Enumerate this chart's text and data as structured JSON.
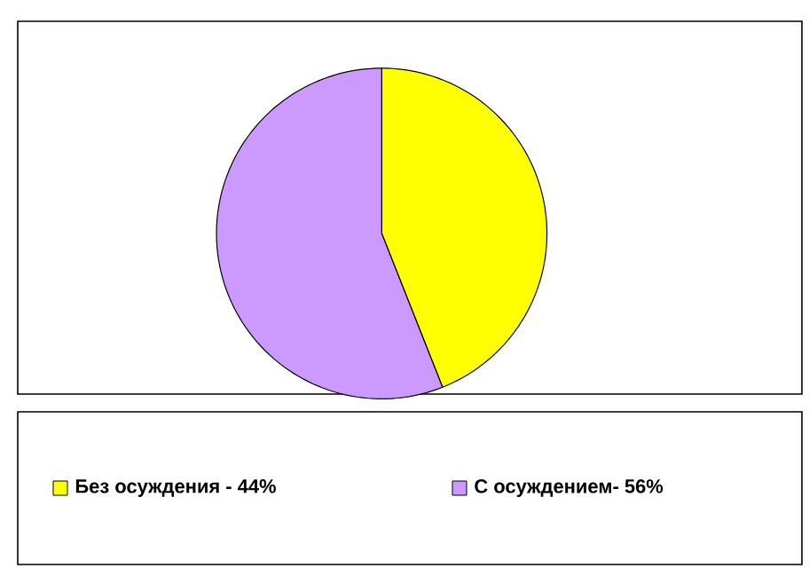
{
  "chart_data": {
    "type": "pie",
    "categories": [
      "Без осуждения - 44%",
      "С осуждением- 56%"
    ],
    "values": [
      44,
      56
    ],
    "colors": [
      "#ffff00",
      "#cc99ff"
    ],
    "legend": "bottom"
  }
}
